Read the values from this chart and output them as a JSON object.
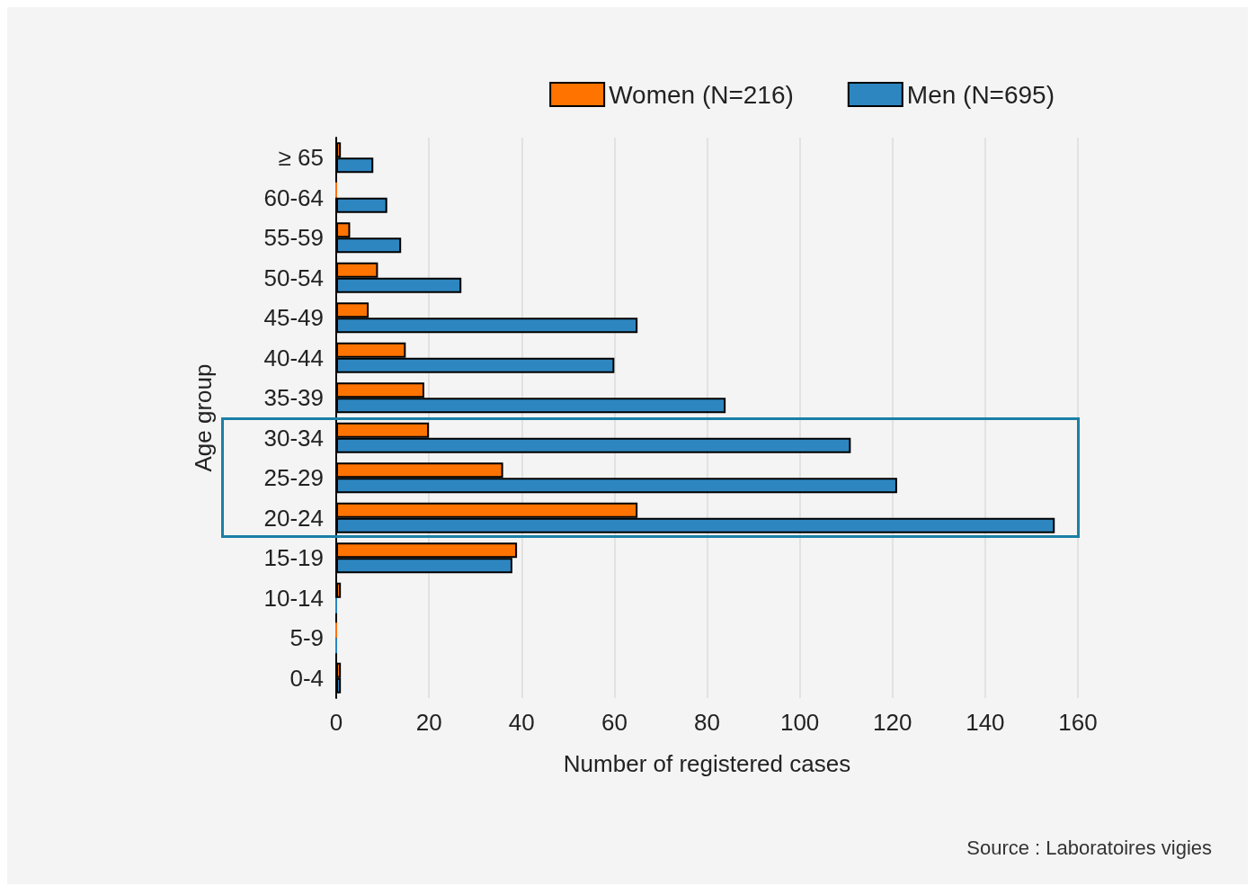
{
  "chart_data": {
    "type": "bar",
    "orientation": "horizontal",
    "xlabel": "Number of registered cases",
    "ylabel": "Age group",
    "categories": [
      "≥ 65",
      "60-64",
      "55-59",
      "50-54",
      "45-49",
      "40-44",
      "35-39",
      "30-34",
      "25-29",
      "20-24",
      "15-19",
      "10-14",
      "5-9",
      "0-4"
    ],
    "series": [
      {
        "name": "Women (N=216)",
        "color": "#ff7300",
        "values": [
          1,
          0,
          3,
          9,
          7,
          15,
          19,
          20,
          36,
          65,
          39,
          1,
          0,
          1
        ]
      },
      {
        "name": "Men (N=695)",
        "color": "#2e86c1",
        "values": [
          8,
          11,
          14,
          27,
          65,
          60,
          84,
          111,
          121,
          155,
          38,
          0,
          0,
          1
        ]
      }
    ],
    "xlim": [
      0,
      160
    ],
    "xticks": [
      0,
      20,
      40,
      60,
      80,
      100,
      120,
      140,
      160
    ],
    "grid": "x",
    "legend": "top right",
    "annotations": [
      "Source : Laboratoires vigies"
    ]
  }
}
